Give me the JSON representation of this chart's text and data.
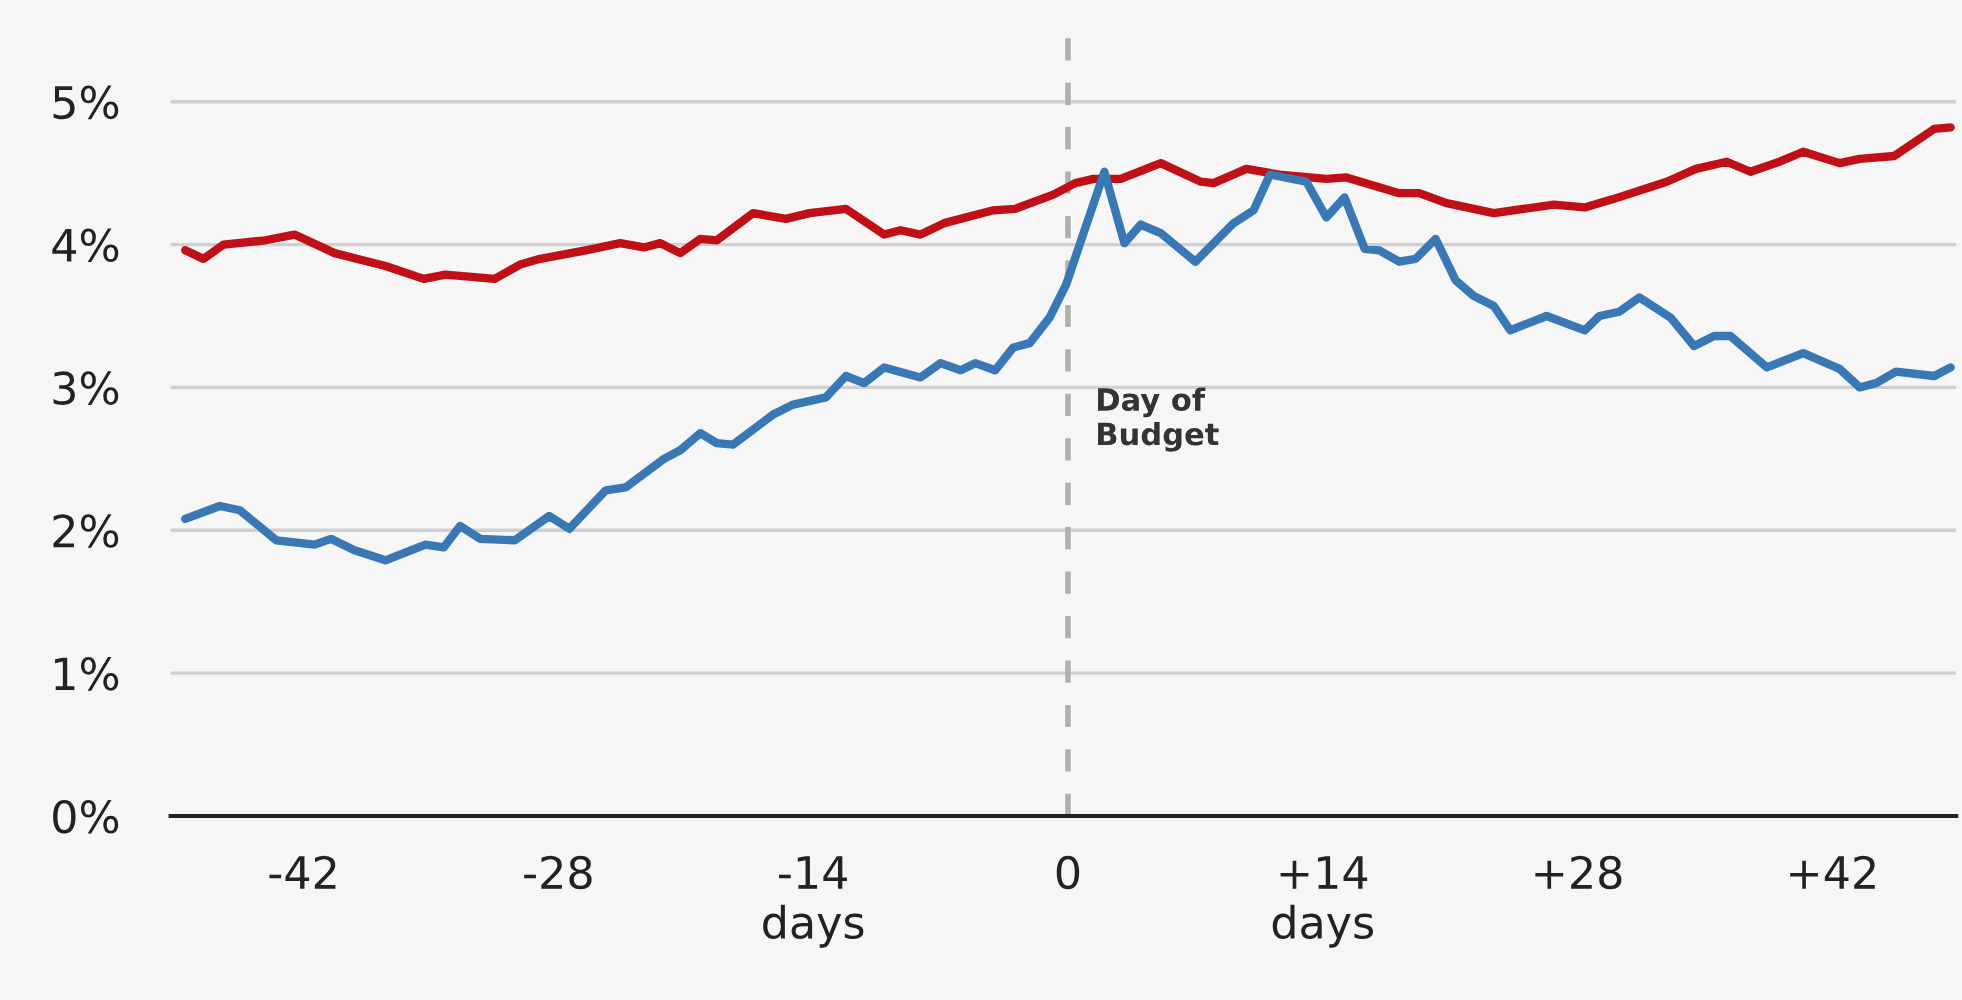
{
  "chart_data": {
    "type": "line",
    "xlim": [
      -49.3,
      48.8
    ],
    "ylim": [
      0,
      5.6
    ],
    "xticks": [
      -42,
      -28,
      {
        "value": -14,
        "label": "-14\ndays"
      },
      0,
      {
        "value": 14,
        "label": "+14\ndays"
      },
      {
        "value": 28,
        "label": "+28"
      },
      {
        "value": 42,
        "label": "+42"
      }
    ],
    "yticks": [
      {
        "value": 0,
        "label": "0%"
      },
      {
        "value": 1,
        "label": "1%"
      },
      {
        "value": 2,
        "label": "2%"
      },
      {
        "value": 3,
        "label": "3%"
      },
      {
        "value": 4,
        "label": "4%"
      },
      {
        "value": 5,
        "label": "5%"
      }
    ],
    "grid": "y",
    "legend": false,
    "marker": "none",
    "line_style": "solid",
    "ref_lines": [
      {
        "axis": "x",
        "value": 0,
        "label": "Day of\nBudget",
        "color": "#b0b0b0",
        "line_style": "dashed"
      }
    ],
    "series": [
      {
        "color": "#c00f17",
        "x": [
          -48.5,
          -47.5,
          -46.4,
          -44.1,
          -42.5,
          -40.3,
          -37.5,
          -35.4,
          -34.2,
          -31.5,
          -30.1,
          -29.0,
          -26.5,
          -24.6,
          -23.3,
          -22.4,
          -21.3,
          -20.2,
          -19.3,
          -17.3,
          -15.5,
          -14.2,
          -12.2,
          -10.1,
          -9.2,
          -8.1,
          -6.8,
          -4.1,
          -2.9,
          -0.8,
          0.4,
          1.4,
          2.9,
          5.1,
          7.3,
          8.0,
          9.8,
          11.6,
          14.2,
          15.3,
          18.2,
          19.3,
          20.8,
          23.4,
          26.7,
          28.4,
          30.0,
          32.9,
          34.5,
          36.2,
          37.5,
          39.1,
          40.4,
          42.4,
          43.5,
          45.4,
          47.6,
          48.5
        ],
        "values": [
          3.96,
          3.9,
          4.0,
          4.03,
          4.07,
          3.94,
          3.85,
          3.76,
          3.79,
          3.76,
          3.86,
          3.9,
          3.96,
          4.01,
          3.98,
          4.01,
          3.94,
          4.04,
          4.03,
          4.22,
          4.18,
          4.22,
          4.25,
          4.07,
          4.1,
          4.07,
          4.15,
          4.24,
          4.25,
          4.35,
          4.43,
          4.46,
          4.46,
          4.57,
          4.44,
          4.43,
          4.53,
          4.49,
          4.46,
          4.47,
          4.36,
          4.36,
          4.29,
          4.22,
          4.28,
          4.26,
          4.32,
          4.44,
          4.53,
          4.58,
          4.51,
          4.58,
          4.65,
          4.57,
          4.6,
          4.62,
          4.81,
          4.82
        ]
      },
      {
        "color": "#3a78b5",
        "x": [
          -48.5,
          -46.6,
          -45.5,
          -43.5,
          -41.4,
          -40.5,
          -39.2,
          -37.5,
          -35.3,
          -34.3,
          -33.4,
          -32.3,
          -30.4,
          -28.5,
          -27.4,
          -25.4,
          -24.3,
          -22.2,
          -21.3,
          -20.2,
          -19.3,
          -18.4,
          -16.2,
          -15.1,
          -13.3,
          -12.2,
          -11.2,
          -10.1,
          -8.1,
          -7.0,
          -5.9,
          -5.1,
          -4.0,
          -3.0,
          -2.1,
          -1.0,
          -0.1,
          2.0,
          3.1,
          4.0,
          5.1,
          7.0,
          9.1,
          10.2,
          11.1,
          13.1,
          14.2,
          15.2,
          16.3,
          17.1,
          18.2,
          19.1,
          20.2,
          21.3,
          22.3,
          23.4,
          24.3,
          26.3,
          28.4,
          29.2,
          30.3,
          31.4,
          33.1,
          34.4,
          35.5,
          36.4,
          38.4,
          40.4,
          42.4,
          43.5,
          44.4,
          45.5,
          47.6,
          48.5
        ],
        "values": [
          2.08,
          2.17,
          2.14,
          1.93,
          1.9,
          1.94,
          1.86,
          1.79,
          1.9,
          1.88,
          2.03,
          1.94,
          1.93,
          2.1,
          2.01,
          2.28,
          2.3,
          2.5,
          2.56,
          2.68,
          2.61,
          2.6,
          2.81,
          2.88,
          2.93,
          3.08,
          3.03,
          3.14,
          3.07,
          3.17,
          3.12,
          3.17,
          3.12,
          3.28,
          3.31,
          3.49,
          3.72,
          4.51,
          4.01,
          4.14,
          4.08,
          3.88,
          4.15,
          4.24,
          4.49,
          4.44,
          4.19,
          4.33,
          3.97,
          3.96,
          3.88,
          3.9,
          4.04,
          3.75,
          3.64,
          3.57,
          3.4,
          3.5,
          3.4,
          3.5,
          3.53,
          3.63,
          3.49,
          3.29,
          3.36,
          3.36,
          3.14,
          3.24,
          3.13,
          3.0,
          3.03,
          3.11,
          3.08,
          3.14
        ]
      }
    ]
  }
}
